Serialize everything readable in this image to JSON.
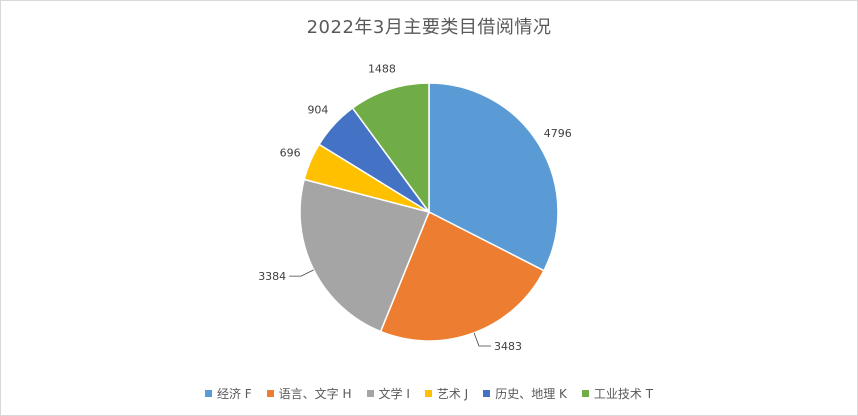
{
  "chart_data": {
    "type": "pie",
    "title": "2022年3月主要类目借阅情况",
    "categories": [
      "经济 F",
      "语言、文字 H",
      "文学 I",
      "艺术 J",
      "历史、地理 K",
      "工业技术 T"
    ],
    "values": [
      4796,
      3483,
      3384,
      696,
      904,
      1488
    ],
    "colors": [
      "#5b9bd5",
      "#ed7d31",
      "#a5a5a5",
      "#ffc000",
      "#4472c4",
      "#70ad47"
    ],
    "data_labels": true,
    "legend_position": "bottom"
  }
}
